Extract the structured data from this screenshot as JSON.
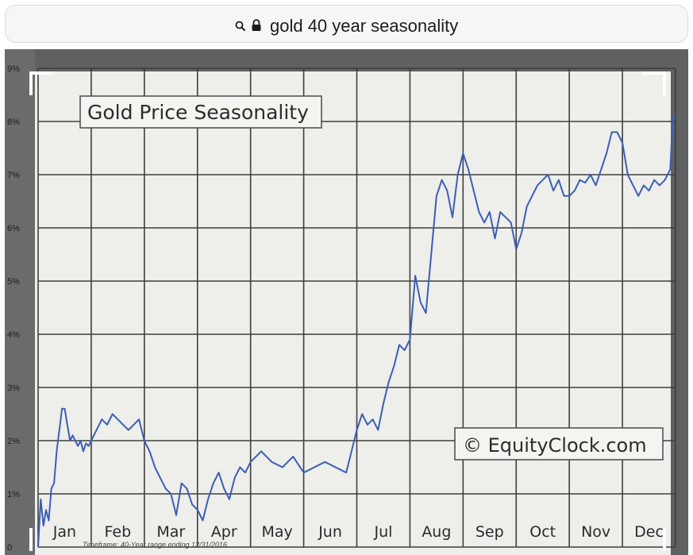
{
  "address_bar": {
    "search_icon": "search-icon",
    "lock_icon": "lock-icon",
    "query": "gold 40 year seasonality"
  },
  "colors": {
    "line": "#3a5fb5",
    "grid": "#3e3e3e",
    "paper": "#eeeeea",
    "photo_background": "#5f6062",
    "address_bar_bg": "#f6f6f7"
  },
  "chart_data": {
    "type": "line",
    "title": "Gold Price Seasonality",
    "watermark": "© EquityClock.com",
    "footnote": "Timeframe: 40-Year range ending 12/31/2016",
    "xlabel": "",
    "ylabel": "",
    "grid": true,
    "legend": "none",
    "x_tick_labels": [
      "Jan",
      "Feb",
      "Mar",
      "Apr",
      "May",
      "Jun",
      "Jul",
      "Aug",
      "Sep",
      "Oct",
      "Nov",
      "Dec"
    ],
    "y_tick_labels": [
      "0",
      "1%",
      "2%",
      "3%",
      "4%",
      "5%",
      "6%",
      "7%",
      "8%",
      "9%"
    ],
    "ylim": [
      0,
      9
    ],
    "xlim": [
      0,
      12
    ],
    "series": [
      {
        "x": [
          0,
          0.05,
          0.1,
          0.15,
          0.2,
          0.25,
          0.3,
          0.35,
          0.4,
          0.45,
          0.5,
          0.55,
          0.6,
          0.65,
          0.7,
          0.75,
          0.8,
          0.85,
          0.9,
          0.95,
          1.0,
          1.1,
          1.2,
          1.3,
          1.4,
          1.5,
          1.6,
          1.7,
          1.8,
          1.9,
          2.0,
          2.1,
          2.2,
          2.3,
          2.4,
          2.5,
          2.6,
          2.7,
          2.8,
          2.9,
          3.0,
          3.1,
          3.2,
          3.3,
          3.4,
          3.5,
          3.6,
          3.7,
          3.8,
          3.9,
          4.0,
          4.2,
          4.4,
          4.6,
          4.8,
          5.0,
          5.2,
          5.4,
          5.6,
          5.8,
          6.0,
          6.1,
          6.2,
          6.3,
          6.4,
          6.5,
          6.6,
          6.7,
          6.8,
          6.9,
          7.0,
          7.1,
          7.2,
          7.3,
          7.4,
          7.5,
          7.6,
          7.7,
          7.8,
          7.9,
          8.0,
          8.1,
          8.2,
          8.3,
          8.4,
          8.5,
          8.6,
          8.7,
          8.8,
          8.9,
          9.0,
          9.1,
          9.2,
          9.3,
          9.4,
          9.5,
          9.6,
          9.7,
          9.8,
          9.9,
          10.0,
          10.1,
          10.2,
          10.3,
          10.4,
          10.5,
          10.6,
          10.7,
          10.8,
          10.9,
          11.0,
          11.1,
          11.2,
          11.3,
          11.4,
          11.5,
          11.6,
          11.7,
          11.8,
          11.85,
          11.9,
          11.95,
          12.0
        ],
        "values": [
          0.0,
          0.9,
          0.4,
          0.7,
          0.5,
          1.1,
          1.2,
          1.8,
          2.2,
          2.6,
          2.6,
          2.3,
          2.0,
          2.1,
          2.0,
          1.9,
          2.0,
          1.8,
          1.95,
          1.9,
          2.0,
          2.2,
          2.4,
          2.3,
          2.5,
          2.4,
          2.3,
          2.2,
          2.3,
          2.4,
          2.0,
          1.8,
          1.5,
          1.3,
          1.1,
          1.0,
          0.6,
          1.2,
          1.1,
          0.8,
          0.7,
          0.5,
          0.9,
          1.2,
          1.4,
          1.1,
          0.9,
          1.3,
          1.5,
          1.4,
          1.6,
          1.8,
          1.6,
          1.5,
          1.7,
          1.4,
          1.5,
          1.6,
          1.5,
          1.4,
          2.2,
          2.5,
          2.3,
          2.4,
          2.2,
          2.7,
          3.1,
          3.4,
          3.8,
          3.7,
          3.9,
          5.1,
          4.6,
          4.4,
          5.5,
          6.6,
          6.9,
          6.7,
          6.2,
          7.0,
          7.4,
          7.1,
          6.7,
          6.3,
          6.1,
          6.3,
          5.8,
          6.3,
          6.2,
          6.1,
          5.6,
          5.9,
          6.4,
          6.6,
          6.8,
          6.9,
          7.0,
          6.7,
          6.9,
          6.6,
          6.6,
          6.7,
          6.9,
          6.85,
          7.0,
          6.8,
          7.1,
          7.4,
          7.8,
          7.8,
          7.6,
          7.0,
          6.8,
          6.6,
          6.8,
          6.7,
          6.9,
          6.8,
          6.9,
          7.0,
          7.1,
          8.1,
          8.1
        ]
      }
    ]
  }
}
